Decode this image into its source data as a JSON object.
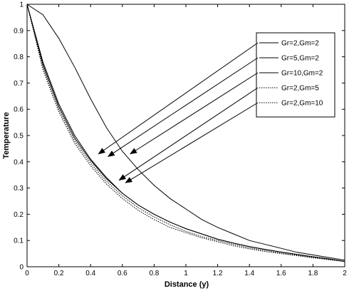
{
  "chart_data": {
    "type": "line",
    "title": "",
    "xlabel": "Distance (y)",
    "ylabel": "Temperature",
    "xlim": [
      0,
      2
    ],
    "ylim": [
      0,
      1
    ],
    "xticks": [
      0,
      0.2,
      0.4,
      0.6,
      0.8,
      1,
      1.2,
      1.4,
      1.6,
      1.8,
      2
    ],
    "xtick_labels": [
      "0",
      "0.2",
      "0.4",
      "0.6",
      "0.8",
      "1",
      "1.2",
      "1.4",
      "1.6",
      "1.8",
      "2"
    ],
    "yticks": [
      0,
      0.1,
      0.2,
      0.3,
      0.4,
      0.5,
      0.6,
      0.7,
      0.8,
      0.9,
      1
    ],
    "ytick_labels": [
      "0",
      "0.1",
      "0.2",
      "0.3",
      "0.4",
      "0.5",
      "0.6",
      "0.7",
      "0.8",
      "0.9",
      "1"
    ],
    "grid": false,
    "legend_position": "top-right",
    "x": [
      0,
      0.1,
      0.2,
      0.3,
      0.4,
      0.5,
      0.6,
      0.7,
      0.8,
      0.9,
      1.0,
      1.1,
      1.2,
      1.3,
      1.4,
      1.5,
      1.6,
      1.7,
      1.8,
      1.9,
      2.0
    ],
    "series": [
      {
        "name": "Gr=2,Gm=2",
        "style": "solid",
        "values": [
          1,
          0.78,
          0.62,
          0.5,
          0.41,
          0.34,
          0.28,
          0.235,
          0.2,
          0.17,
          0.145,
          0.125,
          0.105,
          0.09,
          0.077,
          0.066,
          0.056,
          0.047,
          0.038,
          0.03,
          0.02
        ]
      },
      {
        "name": "Gr=5,Gm=2",
        "style": "solid",
        "values": [
          1,
          0.77,
          0.61,
          0.49,
          0.405,
          0.335,
          0.28,
          0.235,
          0.2,
          0.17,
          0.145,
          0.125,
          0.105,
          0.09,
          0.077,
          0.066,
          0.056,
          0.047,
          0.038,
          0.03,
          0.02
        ]
      },
      {
        "name": "Gr=10,Gm=2",
        "style": "solid",
        "values": [
          1,
          0.96,
          0.87,
          0.76,
          0.64,
          0.53,
          0.44,
          0.37,
          0.31,
          0.26,
          0.22,
          0.18,
          0.15,
          0.125,
          0.1,
          0.085,
          0.07,
          0.055,
          0.045,
          0.035,
          0.025
        ]
      },
      {
        "name": "Gr=2,Gm=5",
        "style": "dotted",
        "values": [
          1,
          0.76,
          0.6,
          0.48,
          0.395,
          0.325,
          0.27,
          0.225,
          0.19,
          0.16,
          0.135,
          0.115,
          0.1,
          0.085,
          0.072,
          0.062,
          0.052,
          0.044,
          0.036,
          0.028,
          0.02
        ]
      },
      {
        "name": "Gr=2,Gm=10",
        "style": "dotted",
        "values": [
          1,
          0.75,
          0.59,
          0.47,
          0.385,
          0.315,
          0.26,
          0.215,
          0.18,
          0.15,
          0.13,
          0.11,
          0.095,
          0.08,
          0.068,
          0.058,
          0.05,
          0.042,
          0.034,
          0.027,
          0.02
        ]
      }
    ],
    "annotations": [
      {
        "series": "Gr=2,Gm=2",
        "points_to": [
          0.45,
          0.43
        ]
      },
      {
        "series": "Gr=5,Gm=2",
        "points_to": [
          0.51,
          0.42
        ]
      },
      {
        "series": "Gr=10,Gm=2",
        "points_to": [
          0.65,
          0.43
        ]
      },
      {
        "series": "Gr=2,Gm=5",
        "points_to": [
          0.58,
          0.33
        ]
      },
      {
        "series": "Gr=2,Gm=10",
        "points_to": [
          0.62,
          0.32
        ]
      }
    ]
  }
}
